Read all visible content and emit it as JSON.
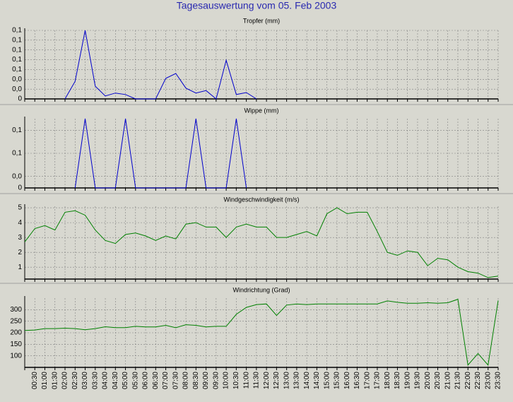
{
  "title": "Tagesauswertung vom 05. Feb 2003",
  "chart_data": [
    {
      "type": "line",
      "title": "Tropfer (mm)",
      "color": "#0000cc",
      "values": [
        null,
        null,
        null,
        null,
        0,
        0.036,
        0.14,
        0.026,
        0.006,
        0.012,
        0.009,
        0,
        0,
        0,
        0.042,
        0.052,
        0.022,
        0.012,
        0.017,
        0,
        0.079,
        0.009,
        0.013,
        0,
        null,
        null,
        null,
        null,
        null,
        null,
        null,
        null,
        null,
        null,
        null,
        null,
        null,
        null,
        null,
        null,
        null,
        null,
        null,
        null,
        null,
        null,
        null,
        null
      ],
      "ylim": [
        0,
        0.14
      ],
      "yticks": [
        0,
        {
          "value": 0.02,
          "label": "0,0"
        },
        {
          "value": 0.04,
          "label": "0,0"
        },
        {
          "value": 0.06,
          "label": "0,1"
        },
        {
          "value": 0.08,
          "label": "0,1"
        },
        {
          "value": 0.1,
          "label": "0,1"
        },
        {
          "value": 0.12,
          "label": "0,1"
        },
        {
          "value": 0.14,
          "label": "0,1"
        }
      ],
      "grid": true
    },
    {
      "type": "line",
      "title": "Wippe (mm)",
      "color": "#0000cc",
      "values": [
        null,
        null,
        null,
        null,
        null,
        0,
        0.12,
        0,
        0,
        0,
        0.12,
        0,
        0,
        0,
        0,
        0,
        0,
        0.12,
        0,
        0,
        0,
        0.12,
        0,
        null,
        null,
        null,
        null,
        null,
        null,
        null,
        null,
        null,
        null,
        null,
        null,
        null,
        null,
        null,
        null,
        null,
        null,
        null,
        null,
        null,
        null,
        null,
        null,
        null
      ],
      "ylim": [
        0,
        0.12
      ],
      "yticks": [
        0,
        {
          "value": 0.02,
          "label": "0,0"
        },
        {
          "value": 0.06,
          "label": "0,1"
        },
        {
          "value": 0.1,
          "label": "0,1"
        }
      ],
      "grid": true
    },
    {
      "type": "line",
      "title": "Windgeschwindigkeit (m/s)",
      "color": "#008000",
      "values": [
        2.7,
        3.6,
        3.8,
        3.5,
        4.7,
        4.8,
        4.5,
        3.5,
        2.8,
        2.6,
        3.2,
        3.3,
        3.1,
        2.8,
        3.1,
        2.9,
        3.9,
        4.0,
        3.7,
        3.7,
        3.0,
        3.7,
        3.9,
        3.7,
        3.7,
        3.0,
        3.0,
        3.2,
        3.4,
        3.1,
        4.6,
        5.0,
        4.6,
        4.7,
        4.7,
        3.4,
        2.0,
        1.8,
        2.1,
        2.0,
        1.1,
        1.6,
        1.5,
        1.0,
        0.7,
        0.6,
        0.3,
        0.4
      ],
      "ylim": [
        0.2,
        5.1
      ],
      "yticks": [
        1,
        2,
        3,
        4,
        5
      ],
      "grid": true
    },
    {
      "type": "line",
      "title": "Windrichtung (Grad)",
      "color": "#008000",
      "values": [
        210,
        212,
        218,
        218,
        220,
        218,
        213,
        218,
        226,
        222,
        222,
        228,
        225,
        225,
        232,
        222,
        235,
        232,
        225,
        228,
        228,
        280,
        310,
        322,
        325,
        275,
        320,
        325,
        322,
        325,
        325,
        325,
        325,
        325,
        325,
        325,
        338,
        332,
        328,
        328,
        330,
        328,
        330,
        345,
        60,
        110,
        60,
        340
      ],
      "ylim": [
        50,
        350
      ],
      "yticks": [
        100,
        150,
        200,
        250,
        300
      ],
      "grid": true,
      "categories": [
        null,
        "00:30",
        "01:00",
        "01:30",
        "02:00",
        "02:30",
        "03:00",
        "03:30",
        "04:00",
        "04:30",
        "05:00",
        "05:30",
        "06:00",
        "06:30",
        "07:00",
        "07:30",
        "08:00",
        "08:30",
        "09:00",
        "09:30",
        "10:00",
        "10:30",
        "11:00",
        "11:30",
        "12:00",
        "12:30",
        "13:00",
        "13:30",
        "14:00",
        "14:30",
        "15:00",
        "15:30",
        "16:00",
        "16:30",
        "17:00",
        "17:30",
        "18:00",
        "18:30",
        "19:00",
        "19:30",
        "20:00",
        "20:30",
        "21:00",
        "21:30",
        "22:00",
        "22:30",
        "23:00",
        "23:30"
      ]
    }
  ]
}
